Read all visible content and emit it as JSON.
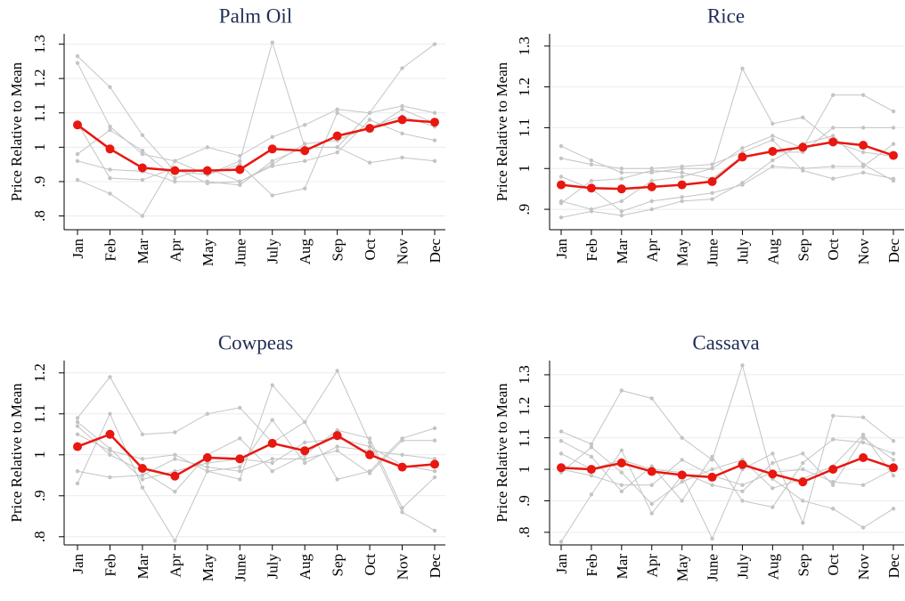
{
  "chart_data": [
    {
      "type": "line",
      "title": "Palm Oil",
      "y_label": "Price Relative to Mean",
      "categories": [
        "Jan",
        "Feb",
        "Mar",
        "Apr",
        "May",
        "June",
        "July",
        "Aug",
        "Sep",
        "Oct",
        "Nov",
        "Dec"
      ],
      "ylim": [
        0.76,
        1.33
      ],
      "yticks": [
        {
          "value": 0.8,
          "label": ".8"
        },
        {
          "value": 0.9,
          "label": ".9"
        },
        1,
        1.1,
        1.2,
        1.3
      ],
      "grid": true,
      "series": [
        {
          "color": "#c4c4c4",
          "values": [
            1.265,
            1.175,
            1.035,
            0.93,
            0.92,
            0.96,
            1.305,
            1.0,
            1.0,
            1.1,
            1.12,
            1.1
          ]
        },
        {
          "color": "#c4c4c4",
          "values": [
            1.245,
            1.06,
            0.98,
            0.96,
            1.0,
            0.975,
            1.03,
            1.065,
            1.11,
            1.1,
            1.23,
            1.3
          ]
        },
        {
          "color": "#c4c4c4",
          "values": [
            0.905,
            0.865,
            0.8,
            0.96,
            0.92,
            0.95,
            0.86,
            0.88,
            1.1,
            1.05,
            1.11,
            1.07
          ]
        },
        {
          "color": "#c4c4c4",
          "values": [
            0.96,
            0.935,
            0.93,
            0.9,
            0.9,
            0.89,
            0.96,
            1.0,
            1.0,
            0.955,
            0.97,
            0.96
          ]
        },
        {
          "color": "#c4c4c4",
          "values": [
            0.98,
            1.05,
            0.99,
            0.91,
            0.94,
            0.9,
            0.945,
            0.96,
            0.985,
            1.08,
            1.04,
            1.02
          ]
        },
        {
          "color": "#c4c4c4",
          "values": [
            1.07,
            0.91,
            0.905,
            0.94,
            0.895,
            0.9,
            0.95,
            1.01,
            1.02,
            1.06,
            1.09,
            1.06
          ]
        },
        {
          "color": "#e8170f",
          "values": [
            1.065,
            0.995,
            0.94,
            0.932,
            0.932,
            0.935,
            0.995,
            0.99,
            1.033,
            1.055,
            1.08,
            1.073
          ]
        }
      ]
    },
    {
      "type": "line",
      "title": "Rice",
      "y_label": "Price Relative to Mean",
      "categories": [
        "Jan",
        "Feb",
        "Mar",
        "Apr",
        "May",
        "June",
        "July",
        "Aug",
        "Sep",
        "Oct",
        "Nov",
        "Dec"
      ],
      "ylim": [
        0.85,
        1.33
      ],
      "yticks": [
        {
          "value": 0.9,
          "label": ".9"
        },
        1,
        1.1,
        1.2,
        1.3
      ],
      "grid": true,
      "series": [
        {
          "color": "#c4c4c4",
          "values": [
            1.055,
            1.02,
            0.99,
            0.99,
            1.0,
            1.0,
            1.245,
            1.11,
            1.125,
            1.065,
            1.04,
            1.03
          ]
        },
        {
          "color": "#c4c4c4",
          "values": [
            0.92,
            0.9,
            0.92,
            0.97,
            0.98,
            1.0,
            1.05,
            1.08,
            1.05,
            1.18,
            1.18,
            1.14
          ]
        },
        {
          "color": "#c4c4c4",
          "values": [
            0.88,
            0.895,
            0.885,
            0.9,
            0.92,
            0.925,
            0.965,
            1.02,
            1.06,
            1.08,
            1.01,
            0.97
          ]
        },
        {
          "color": "#c4c4c4",
          "values": [
            0.98,
            0.95,
            0.895,
            0.92,
            0.93,
            0.94,
            0.96,
            1.005,
            1.0,
            1.005,
            1.005,
            1.06
          ]
        },
        {
          "color": "#c4c4c4",
          "values": [
            1.025,
            1.01,
            1.0,
            1.0,
            1.005,
            1.01,
            1.04,
            1.07,
            0.995,
            0.975,
            0.99,
            0.975
          ]
        },
        {
          "color": "#c4c4c4",
          "values": [
            0.915,
            0.97,
            0.975,
            0.995,
            0.99,
            0.975,
            1.03,
            1.04,
            1.04,
            1.1,
            1.1,
            1.1
          ]
        },
        {
          "color": "#e8170f",
          "values": [
            0.96,
            0.952,
            0.95,
            0.955,
            0.96,
            0.968,
            1.028,
            1.042,
            1.052,
            1.065,
            1.057,
            1.032
          ]
        }
      ]
    },
    {
      "type": "line",
      "title": "Cowpeas",
      "y_label": "Price Relative to Mean",
      "categories": [
        "Jan",
        "Feb",
        "Mar",
        "Apr",
        "May",
        "June",
        "July",
        "Aug",
        "Sep",
        "Oct",
        "Nov",
        "Dec"
      ],
      "ylim": [
        0.78,
        1.23
      ],
      "yticks": [
        {
          "value": 0.8,
          "label": ".8"
        },
        {
          "value": 0.9,
          "label": ".9"
        },
        1,
        1.1,
        1.2
      ],
      "grid": true,
      "series": [
        {
          "color": "#c4c4c4",
          "values": [
            1.09,
            1.19,
            1.05,
            1.055,
            1.1,
            1.115,
            1.03,
            1.08,
            1.205,
            1.03,
            0.86,
            0.815
          ]
        },
        {
          "color": "#c4c4c4",
          "values": [
            0.93,
            1.1,
            0.92,
            0.79,
            0.96,
            0.94,
            1.17,
            1.08,
            0.94,
            0.96,
            1.04,
            1.065
          ]
        },
        {
          "color": "#c4c4c4",
          "values": [
            1.07,
            1.0,
            0.96,
            0.91,
            1.0,
            1.04,
            0.96,
            1.0,
            1.06,
            1.04,
            0.87,
            0.945
          ]
        },
        {
          "color": "#c4c4c4",
          "values": [
            0.96,
            0.945,
            0.95,
            0.99,
            0.97,
            0.96,
            0.99,
            0.99,
            1.01,
            0.955,
            1.035,
            1.035
          ]
        },
        {
          "color": "#c4c4c4",
          "values": [
            1.05,
            1.01,
            0.99,
            1.0,
            0.96,
            0.97,
            1.085,
            0.98,
            1.02,
            1.01,
            1.0,
            0.99
          ]
        },
        {
          "color": "#c4c4c4",
          "values": [
            1.08,
            1.015,
            0.94,
            0.96,
            0.98,
            0.99,
            0.98,
            1.03,
            1.04,
            1.02,
            0.975,
            0.96
          ]
        },
        {
          "color": "#e8170f",
          "values": [
            1.02,
            1.05,
            0.967,
            0.948,
            0.993,
            0.99,
            1.028,
            1.01,
            1.047,
            1.0,
            0.97,
            0.977
          ]
        }
      ]
    },
    {
      "type": "line",
      "title": "Cassava",
      "y_label": "Price Relative to Mean",
      "categories": [
        "Jan",
        "Feb",
        "Mar",
        "Apr",
        "May",
        "June",
        "July",
        "Aug",
        "Sep",
        "Oct",
        "Nov",
        "Dec"
      ],
      "ylim": [
        0.76,
        1.345
      ],
      "yticks": [
        {
          "value": 0.8,
          "label": ".8"
        },
        {
          "value": 0.9,
          "label": ".9"
        },
        1,
        1.1,
        1.2,
        1.3
      ],
      "grid": true,
      "series": [
        {
          "color": "#c4c4c4",
          "values": [
            1.12,
            1.08,
            1.25,
            1.225,
            1.1,
            1.03,
            1.33,
            0.97,
            0.9,
            0.875,
            0.815,
            0.875
          ]
        },
        {
          "color": "#c4c4c4",
          "values": [
            0.77,
            0.92,
            1.06,
            0.86,
            0.98,
            0.78,
            1.0,
            1.05,
            0.83,
            1.17,
            1.165,
            1.09
          ]
        },
        {
          "color": "#c4c4c4",
          "values": [
            1.09,
            1.04,
            0.93,
            1.01,
            0.9,
            1.04,
            0.9,
            0.88,
            1.02,
            1.095,
            1.085,
            1.05
          ]
        },
        {
          "color": "#c4c4c4",
          "values": [
            1.0,
            0.98,
            0.95,
            0.95,
            1.03,
            0.98,
            0.95,
            0.99,
            1.0,
            0.96,
            0.95,
            1.0
          ]
        },
        {
          "color": "#c4c4c4",
          "values": [
            0.99,
            1.07,
            0.99,
            0.89,
            0.96,
            1.0,
            1.03,
            0.94,
            0.97,
            1.01,
            1.11,
            0.98
          ]
        },
        {
          "color": "#c4c4c4",
          "values": [
            1.05,
            1.0,
            1.03,
            1.0,
            0.99,
            0.95,
            0.93,
            1.02,
            1.05,
            0.95,
            1.1,
            1.03
          ]
        },
        {
          "color": "#e8170f",
          "values": [
            1.005,
            1.0,
            1.02,
            0.993,
            0.982,
            0.975,
            1.015,
            0.985,
            0.96,
            1.0,
            1.037,
            1.005
          ]
        }
      ]
    }
  ]
}
